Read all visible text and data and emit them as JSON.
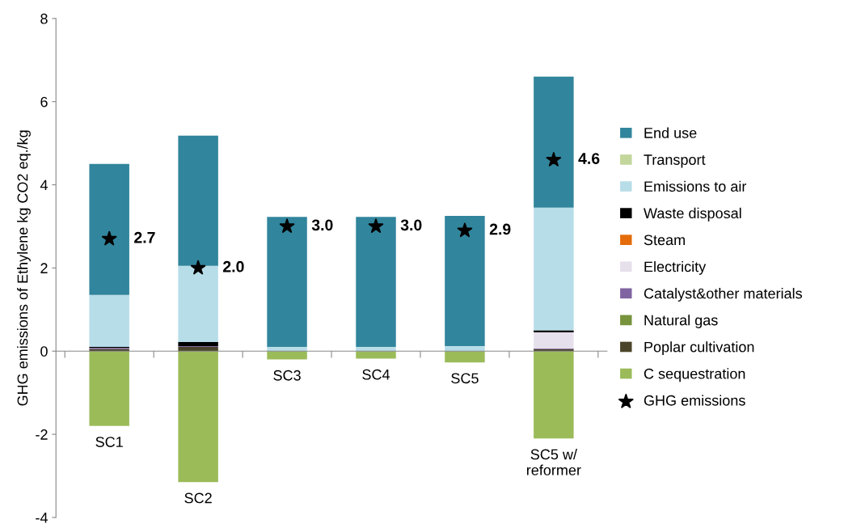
{
  "chart_data": {
    "type": "bar",
    "stacked": true,
    "ylabel": "GHG emissions of Ethylene kg CO2 eq./kg",
    "categories": [
      "SC1",
      "SC2",
      "SC3",
      "SC4",
      "SC5",
      "SC5 w/\nreformer"
    ],
    "ylim": [
      -4,
      8
    ],
    "yticks": [
      -4,
      -2,
      0,
      2,
      4,
      6,
      8
    ],
    "grid": false,
    "legend": "right",
    "series": [
      {
        "name": "C sequestration",
        "color": "#9bbb59",
        "values": [
          -1.8,
          -3.15,
          -0.2,
          -0.18,
          -0.27,
          -2.1
        ]
      },
      {
        "name": "Poplar cultivation",
        "color": "#4a452a",
        "values": [
          0.05,
          0.1,
          0,
          0,
          0,
          0.05
        ]
      },
      {
        "name": "Natural gas",
        "color": "#77933c",
        "values": [
          0,
          0,
          0,
          0,
          0,
          0
        ]
      },
      {
        "name": "Catalyst&other materials",
        "color": "#8064a2",
        "values": [
          0.03,
          0.02,
          0,
          0,
          0,
          0.02
        ]
      },
      {
        "name": "Electricity",
        "color": "#e6e0ec",
        "values": [
          0,
          0,
          0,
          0,
          0,
          0.38
        ]
      },
      {
        "name": "Steam",
        "color": "#e46c0a",
        "values": [
          0,
          0,
          0,
          0,
          0,
          0
        ]
      },
      {
        "name": "Waste disposal",
        "color": "#000000",
        "values": [
          0.02,
          0.1,
          0,
          0,
          0,
          0.05
        ]
      },
      {
        "name": "Emissions to air",
        "color": "#b7dde8",
        "values": [
          1.25,
          1.83,
          0.1,
          0.1,
          0.12,
          2.95
        ]
      },
      {
        "name": "Transport",
        "color": "#c3d69b",
        "values": [
          0,
          0,
          0,
          0,
          0,
          0
        ]
      },
      {
        "name": "End use",
        "color": "#31859c",
        "values": [
          3.15,
          3.13,
          3.13,
          3.13,
          3.13,
          3.15
        ]
      },
      {
        "name": "GHG emissions",
        "type": "scatter",
        "marker": "star",
        "color": "#000000",
        "values": [
          2.7,
          2.0,
          3.0,
          3.0,
          2.9,
          4.6
        ],
        "value_labels": [
          "2.7",
          "2.0",
          "3.0",
          "3.0",
          "2.9",
          "4.6"
        ]
      }
    ]
  }
}
